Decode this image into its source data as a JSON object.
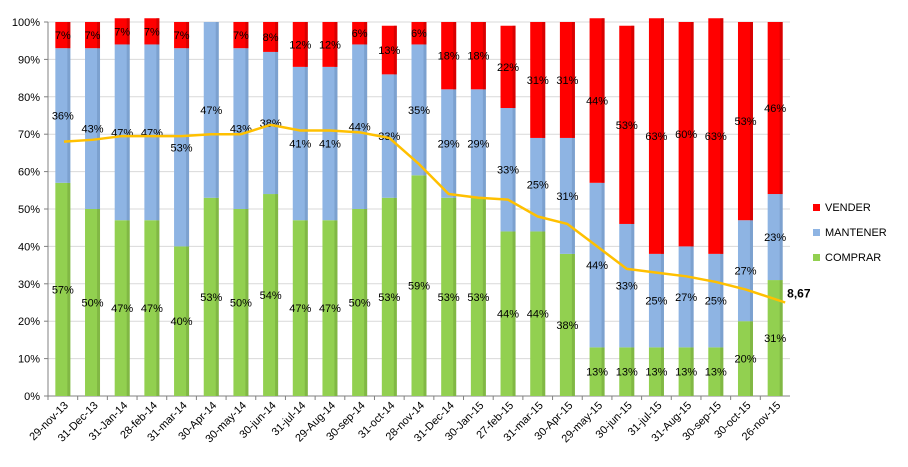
{
  "colors": {
    "vender": "#ff0000",
    "mantener": "#8eb4e3",
    "comprar": "#92d050",
    "line": "#ffc000",
    "grid": "#d9d9d9",
    "axis": "#808080"
  },
  "chart_data": {
    "type": "bar",
    "stacked": true,
    "ylim": [
      0,
      100
    ],
    "yticks": [
      "0%",
      "10%",
      "20%",
      "30%",
      "40%",
      "50%",
      "60%",
      "70%",
      "80%",
      "90%",
      "100%"
    ],
    "grid": true,
    "legend_position": "right",
    "categories": [
      "29-nov-13",
      "31-Dec-13",
      "31-Jan-14",
      "28-feb-14",
      "31-mar-14",
      "30-Apr-14",
      "30-may-14",
      "30-jun-14",
      "31-jul-14",
      "29-Aug-14",
      "30-sep-14",
      "31-oct-14",
      "28-nov-14",
      "31-Dec-14",
      "30-Jan-15",
      "27-feb-15",
      "31-mar-15",
      "30-Apr-15",
      "29-may-15",
      "30-jun-15",
      "31-jul-15",
      "31-Aug-15",
      "30-sep-15",
      "30-oct-15",
      "26-nov-15"
    ],
    "series": [
      {
        "name": "COMPRAR",
        "values": [
          57,
          50,
          47,
          47,
          40,
          53,
          50,
          54,
          47,
          47,
          50,
          53,
          59,
          53,
          53,
          44,
          44,
          38,
          13,
          13,
          13,
          13,
          13,
          20,
          31
        ],
        "labels": [
          "57%",
          "50%",
          "47%",
          "47%",
          "40%",
          "53%",
          "50%",
          "54%",
          "47%",
          "47%",
          "50%",
          "53%",
          "59%",
          "53%",
          "53%",
          "44%",
          "44%",
          "38%",
          "13%",
          "13%",
          "13%",
          "13%",
          "13%",
          "20%",
          "31%"
        ]
      },
      {
        "name": "MANTENER",
        "values": [
          36,
          43,
          47,
          47,
          53,
          47,
          43,
          38,
          41,
          41,
          44,
          33,
          35,
          29,
          29,
          33,
          25,
          31,
          44,
          33,
          25,
          27,
          25,
          27,
          23
        ],
        "labels": [
          "36%",
          "43%",
          "47%",
          "47%",
          "53%",
          "47%",
          "43%",
          "38%",
          "41%",
          "41%",
          "44%",
          "33%",
          "35%",
          "29%",
          "29%",
          "33%",
          "25%",
          "31%",
          "44%",
          "33%",
          "25%",
          "27%",
          "25%",
          "27%",
          "23%"
        ]
      },
      {
        "name": "VENDER",
        "values": [
          7,
          7,
          7,
          7,
          7,
          0,
          7,
          8,
          12,
          12,
          6,
          13,
          6,
          18,
          18,
          22,
          31,
          31,
          44,
          53,
          63,
          60,
          63,
          53,
          46
        ],
        "labels": [
          "7%",
          "7%",
          "7%",
          "7%",
          "7%",
          "",
          "7%",
          "8%",
          "12%",
          "12%",
          "6%",
          "13%",
          "6%",
          "18%",
          "18%",
          "22%",
          "31%",
          "31%",
          "44%",
          "53%",
          "63%",
          "60%",
          "63%",
          "53%",
          "46%"
        ]
      }
    ],
    "line": {
      "values": [
        68,
        68.5,
        69.5,
        69.5,
        69.5,
        70,
        70,
        72.5,
        71,
        71,
        70.5,
        69,
        62,
        54,
        53,
        52.5,
        48,
        46,
        40,
        34,
        33,
        32,
        30.5,
        28.5,
        25
      ],
      "end_label": "8,67"
    },
    "legend": [
      "VENDER",
      "MANTENER",
      "COMPRAR"
    ]
  }
}
